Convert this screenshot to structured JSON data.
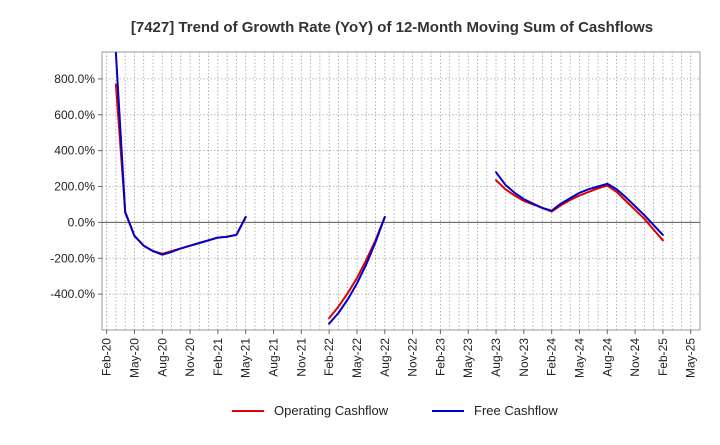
{
  "chart_data": {
    "type": "line",
    "title": "[7427]  Trend of Growth Rate (YoY) of 12-Month Moving Sum of Cashflows",
    "xlabel": "",
    "ylabel": "",
    "x_ticks": [
      "Feb-20",
      "May-20",
      "Aug-20",
      "Nov-20",
      "Feb-21",
      "May-21",
      "Aug-21",
      "Nov-21",
      "Feb-22",
      "May-22",
      "Aug-22",
      "Nov-22",
      "Feb-23",
      "May-23",
      "Aug-23",
      "Nov-23",
      "Feb-24",
      "May-24",
      "Aug-24",
      "Nov-24",
      "Feb-25",
      "May-25"
    ],
    "y_ticks": [
      800,
      600,
      400,
      200,
      0,
      -200,
      -400
    ],
    "y_tick_labels": [
      "800.0%",
      "600.0%",
      "400.0%",
      "200.0%",
      "0.0%",
      "-200.0%",
      "-400.0%"
    ],
    "ylim": [
      -600,
      950
    ],
    "grid": true,
    "legend_position": "bottom-center",
    "series": [
      {
        "name": "Operating Cashflow",
        "color": "#dd0000",
        "segments": [
          [
            {
              "x": "Mar-20",
              "y": 770
            },
            {
              "x": "Apr-20",
              "y": 60
            },
            {
              "x": "May-20",
              "y": -75
            },
            {
              "x": "Jun-20",
              "y": -130
            },
            {
              "x": "Jul-20",
              "y": -160
            },
            {
              "x": "Aug-20",
              "y": -175
            },
            {
              "x": "Sep-20",
              "y": -160
            },
            {
              "x": "Oct-20",
              "y": -145
            },
            {
              "x": "Nov-20",
              "y": -130
            },
            {
              "x": "Dec-20",
              "y": -115
            },
            {
              "x": "Jan-21",
              "y": -100
            },
            {
              "x": "Feb-21",
              "y": -85
            },
            {
              "x": "Mar-21",
              "y": -80
            },
            {
              "x": "Apr-21",
              "y": -70
            },
            {
              "x": "May-21",
              "y": 30
            }
          ],
          [
            {
              "x": "Feb-22",
              "y": -535
            },
            {
              "x": "Mar-22",
              "y": -470
            },
            {
              "x": "Apr-22",
              "y": -395
            },
            {
              "x": "May-22",
              "y": -310
            },
            {
              "x": "Jun-22",
              "y": -210
            },
            {
              "x": "Jul-22",
              "y": -100
            },
            {
              "x": "Aug-22",
              "y": 30
            }
          ],
          [
            {
              "x": "Aug-23",
              "y": 235
            },
            {
              "x": "Sep-23",
              "y": 185
            },
            {
              "x": "Oct-23",
              "y": 150
            },
            {
              "x": "Nov-23",
              "y": 120
            },
            {
              "x": "Dec-23",
              "y": 100
            },
            {
              "x": "Jan-24",
              "y": 80
            },
            {
              "x": "Feb-24",
              "y": 60
            },
            {
              "x": "Mar-24",
              "y": 95
            },
            {
              "x": "Apr-24",
              "y": 125
            },
            {
              "x": "May-24",
              "y": 150
            },
            {
              "x": "Jun-24",
              "y": 170
            },
            {
              "x": "Jul-24",
              "y": 190
            },
            {
              "x": "Aug-24",
              "y": 205
            },
            {
              "x": "Sep-24",
              "y": 170
            },
            {
              "x": "Oct-24",
              "y": 120
            },
            {
              "x": "Nov-24",
              "y": 70
            },
            {
              "x": "Dec-24",
              "y": 20
            },
            {
              "x": "Jan-25",
              "y": -40
            },
            {
              "x": "Feb-25",
              "y": -100
            }
          ]
        ]
      },
      {
        "name": "Free Cashflow",
        "color": "#0000cc",
        "segments": [
          [
            {
              "x": "Mar-20",
              "y": 945
            },
            {
              "x": "Apr-20",
              "y": 55
            },
            {
              "x": "May-20",
              "y": -75
            },
            {
              "x": "Jun-20",
              "y": -130
            },
            {
              "x": "Jul-20",
              "y": -160
            },
            {
              "x": "Aug-20",
              "y": -180
            },
            {
              "x": "Sep-20",
              "y": -165
            },
            {
              "x": "Oct-20",
              "y": -145
            },
            {
              "x": "Nov-20",
              "y": -130
            },
            {
              "x": "Dec-20",
              "y": -115
            },
            {
              "x": "Jan-21",
              "y": -100
            },
            {
              "x": "Feb-21",
              "y": -85
            },
            {
              "x": "Mar-21",
              "y": -80
            },
            {
              "x": "Apr-21",
              "y": -70
            },
            {
              "x": "May-21",
              "y": 30
            }
          ],
          [
            {
              "x": "Feb-22",
              "y": -565
            },
            {
              "x": "Mar-22",
              "y": -505
            },
            {
              "x": "Apr-22",
              "y": -430
            },
            {
              "x": "May-22",
              "y": -340
            },
            {
              "x": "Jun-22",
              "y": -235
            },
            {
              "x": "Jul-22",
              "y": -110
            },
            {
              "x": "Aug-22",
              "y": 30
            }
          ],
          [
            {
              "x": "Aug-23",
              "y": 280
            },
            {
              "x": "Sep-23",
              "y": 210
            },
            {
              "x": "Oct-23",
              "y": 165
            },
            {
              "x": "Nov-23",
              "y": 130
            },
            {
              "x": "Dec-23",
              "y": 105
            },
            {
              "x": "Jan-24",
              "y": 80
            },
            {
              "x": "Feb-24",
              "y": 65
            },
            {
              "x": "Mar-24",
              "y": 105
            },
            {
              "x": "Apr-24",
              "y": 135
            },
            {
              "x": "May-24",
              "y": 165
            },
            {
              "x": "Jun-24",
              "y": 185
            },
            {
              "x": "Jul-24",
              "y": 200
            },
            {
              "x": "Aug-24",
              "y": 215
            },
            {
              "x": "Sep-24",
              "y": 185
            },
            {
              "x": "Oct-24",
              "y": 140
            },
            {
              "x": "Nov-24",
              "y": 90
            },
            {
              "x": "Dec-24",
              "y": 40
            },
            {
              "x": "Jan-25",
              "y": -15
            },
            {
              "x": "Feb-25",
              "y": -70
            }
          ]
        ]
      }
    ]
  }
}
